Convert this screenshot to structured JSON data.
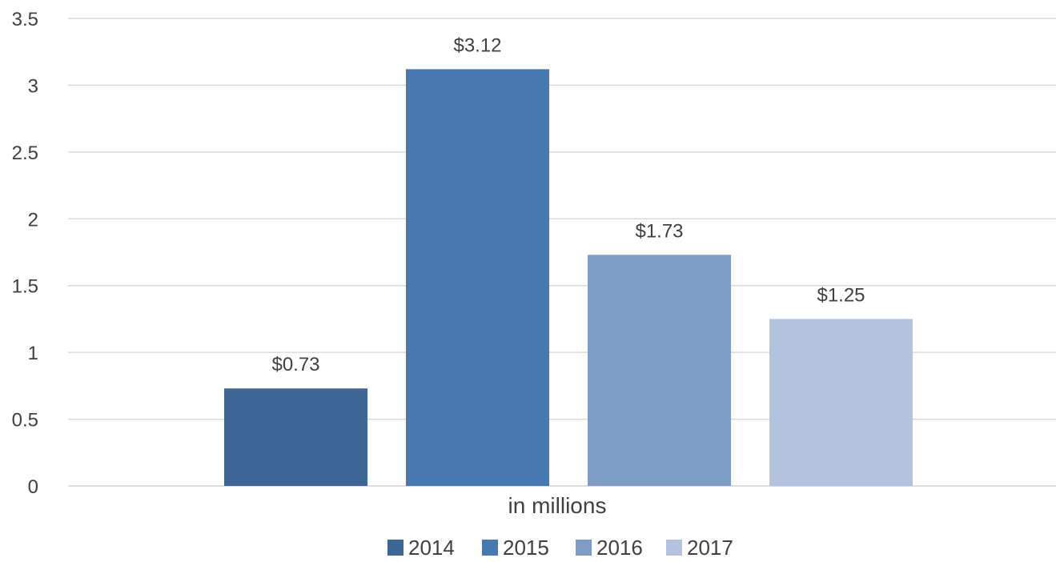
{
  "chart_data": {
    "type": "bar",
    "title": "",
    "xlabel": "in millions",
    "ylabel": "",
    "ylim": [
      0,
      3.5
    ],
    "yticks": [
      "0",
      "0.5",
      "1",
      "1.5",
      "2",
      "2.5",
      "3",
      "3.5"
    ],
    "grid": true,
    "legend_position": "bottom",
    "series": [
      {
        "name": "2014",
        "values": [
          0.73
        ],
        "label": "$0.73",
        "color": "#3d6696"
      },
      {
        "name": "2015",
        "values": [
          3.12
        ],
        "label": "$3.12",
        "color": "#4878b0"
      },
      {
        "name": "2016",
        "values": [
          1.73
        ],
        "label": "$1.73",
        "color": "#7e9cc6"
      },
      {
        "name": "2017",
        "values": [
          1.25
        ],
        "label": "$1.25",
        "color": "#b3c3df"
      }
    ]
  }
}
